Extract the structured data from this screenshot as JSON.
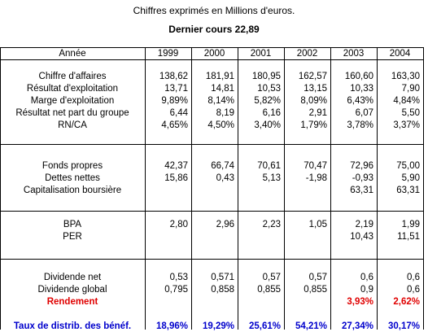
{
  "header": {
    "caption": "Chiffres exprimés en Millions d'euros.",
    "subcaption": "Dernier cours  22,89"
  },
  "table": {
    "year_label": "Année",
    "years": [
      "1999",
      "2000",
      "2001",
      "2002",
      "2003",
      "2004"
    ],
    "groups": [
      {
        "rows": [
          {
            "label": "Chiffre d'affaires",
            "values": [
              "138,62",
              "181,91",
              "180,95",
              "162,57",
              "160,60",
              "163,30"
            ]
          },
          {
            "label": "Résultat d'exploitation",
            "values": [
              "13,71",
              "14,81",
              "10,53",
              "13,15",
              "10,33",
              "7,90"
            ]
          },
          {
            "label": "Marge d'exploitation",
            "values": [
              "9,89%",
              "8,14%",
              "5,82%",
              "8,09%",
              "6,43%",
              "4,84%"
            ]
          },
          {
            "label": "Résultat net part du groupe",
            "values": [
              "6,44",
              "8,19",
              "6,16",
              "2,91",
              "6,07",
              "5,50"
            ]
          },
          {
            "label": "RN/CA",
            "values": [
              "4,65%",
              "4,50%",
              "3,40%",
              "1,79%",
              "3,78%",
              "3,37%"
            ]
          }
        ]
      },
      {
        "rows": [
          {
            "label": "Fonds propres",
            "values": [
              "42,37",
              "66,74",
              "70,61",
              "70,47",
              "72,96",
              "75,00"
            ]
          },
          {
            "label": "Dettes nettes",
            "values": [
              "15,86",
              "0,43",
              "5,13",
              "-1,98",
              "-0,93",
              "5,90"
            ]
          },
          {
            "label": "Capitalisation boursière",
            "values": [
              "",
              "",
              "",
              "",
              "63,31",
              "63,31"
            ]
          }
        ]
      },
      {
        "rows": [
          {
            "label": "BPA",
            "values": [
              "2,80",
              "2,96",
              "2,23",
              "1,05",
              "2,19",
              "1,99"
            ]
          },
          {
            "label": "PER",
            "values": [
              "",
              "",
              "",
              "",
              "10,43",
              "11,51"
            ]
          }
        ]
      },
      {
        "rows": [
          {
            "label": "Dividende net",
            "values": [
              "0,53",
              "0,571",
              "0,57",
              "0,57",
              "0,6",
              "0,6"
            ]
          },
          {
            "label": "Dividende global",
            "values": [
              "0,795",
              "0,858",
              "0,855",
              "0,855",
              "0,9",
              "0,6"
            ]
          },
          {
            "label": "Rendement",
            "style": "red",
            "values": [
              "",
              "",
              "",
              "",
              "3,93%",
              "2,62%"
            ]
          }
        ]
      }
    ],
    "footer_row": {
      "label": "Taux de distrib. des bénéf.",
      "values": [
        "18,96%",
        "19,29%",
        "25,61%",
        "54,21%",
        "27,34%",
        "30,17%"
      ]
    },
    "colors": {
      "rendement": "#e00000",
      "distribution": "#0000cc"
    }
  }
}
